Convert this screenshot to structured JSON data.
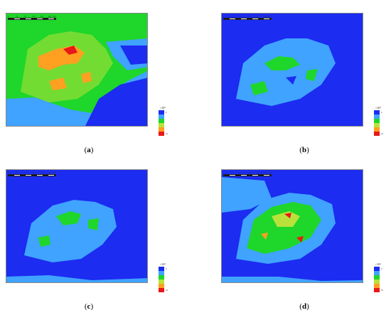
{
  "panels": [
    {
      "id": "a",
      "caption": "a"
    },
    {
      "id": "b",
      "caption": "b"
    },
    {
      "id": "c",
      "caption": "c"
    },
    {
      "id": "d",
      "caption": "d"
    }
  ],
  "scale_labels": [
    "0",
    "25",
    "50",
    "100",
    "150",
    "200"
  ],
  "scale_unit": "km",
  "legend": {
    "title": "×10⁴",
    "classes": [
      {
        "label": "0",
        "color": "#1c2cf0"
      },
      {
        "label": "",
        "color": "#3fa3ff"
      },
      {
        "label": "",
        "color": "#1fd62a"
      },
      {
        "label": "",
        "color": "#b8e23a"
      },
      {
        "label": "",
        "color": "#ffa020"
      },
      {
        "label": "10",
        "color": "#e81818"
      }
    ]
  },
  "colors": {
    "water": "#1c2cf0",
    "low": "#3fa3ff",
    "mid": "#1fd62a",
    "mid_high": "#b8e23a",
    "high": "#ffa020",
    "very_high": "#e81818"
  }
}
